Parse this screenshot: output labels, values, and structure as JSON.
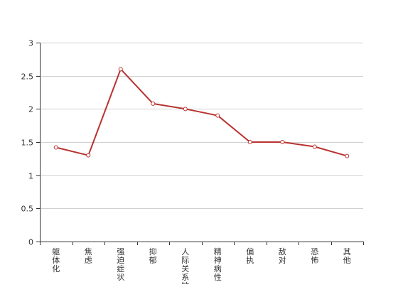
{
  "chart_data": {
    "type": "line",
    "title": "",
    "xlabel": "",
    "ylabel": "",
    "categories": [
      "躯体化",
      "焦虑",
      "强迫症状",
      "抑郁",
      "人际关系敏感",
      "精神病性",
      "偏执",
      "敌对",
      "恐怖",
      "其他"
    ],
    "series": [
      {
        "values": [
          1.42,
          1.3,
          2.6,
          2.08,
          2.0,
          1.9,
          1.5,
          1.5,
          1.43,
          1.29
        ],
        "color": "#b83330"
      }
    ],
    "ylim": [
      0,
      3
    ],
    "yticks": [
      0,
      0.5,
      1,
      1.5,
      2,
      2.5,
      3
    ],
    "ytick_labels": [
      "0",
      "0.5",
      "1",
      "1.5",
      "2",
      "2.5",
      "3"
    ],
    "grid": true,
    "gridColor": "#d0d0d0",
    "axisColor": "#333333",
    "legend": "none"
  }
}
